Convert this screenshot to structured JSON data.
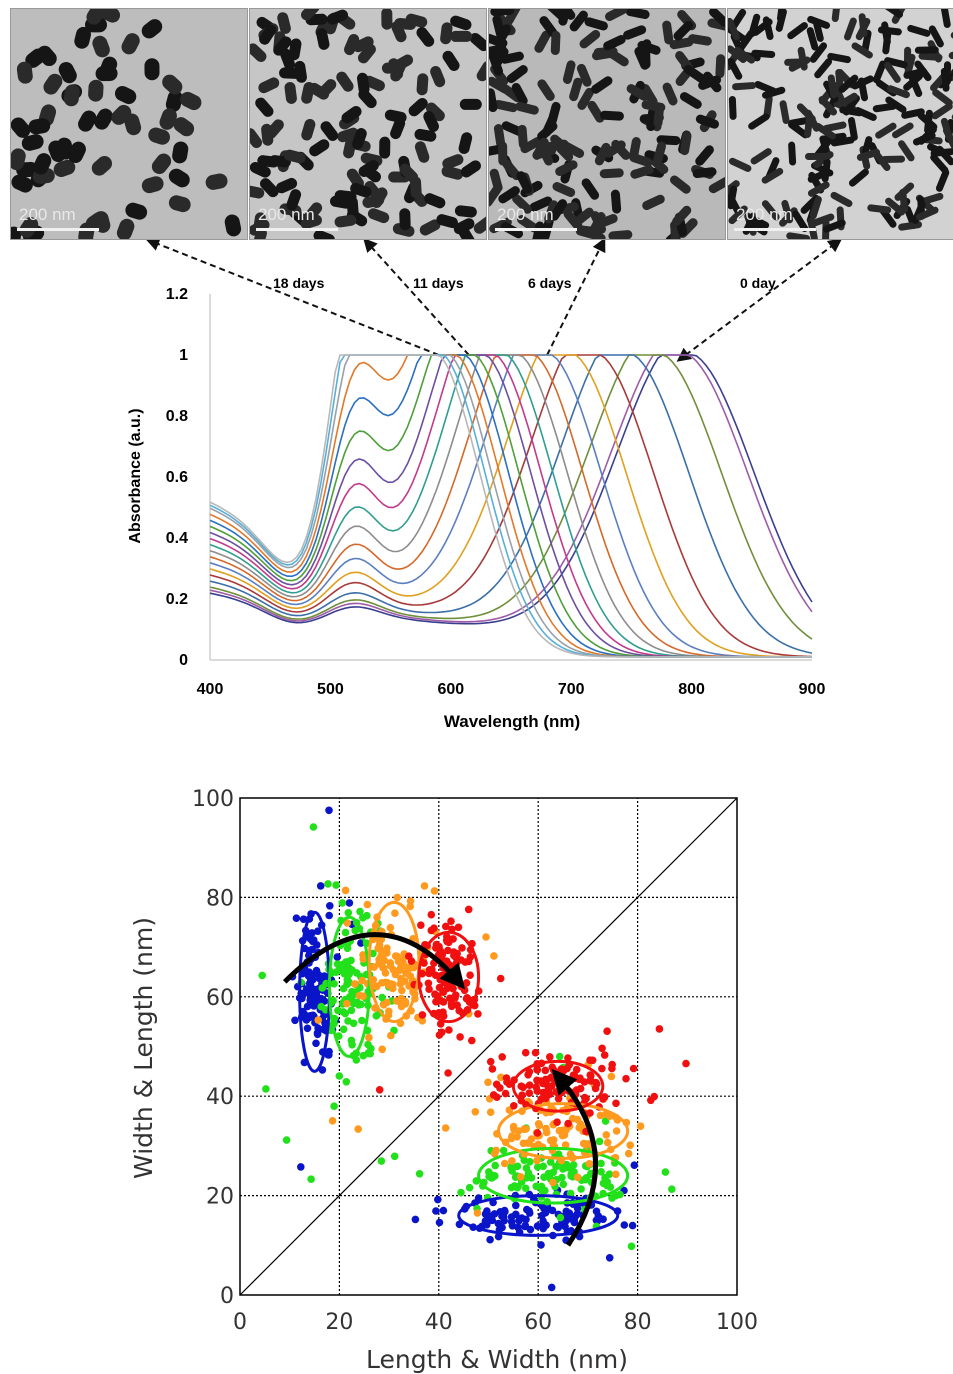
{
  "tem_images": [
    {
      "scale_label": "200 nm",
      "age": "18 days"
    },
    {
      "scale_label": "200 nm",
      "age": "11 days"
    },
    {
      "scale_label": "200 nm",
      "age": "6 days"
    },
    {
      "scale_label": "200 nm",
      "age": "0 day"
    }
  ],
  "colors": {
    "blue": "#0a14c8",
    "green": "#22e01a",
    "orange": "#ff9a1e",
    "red": "#f01010"
  },
  "chart_data": [
    {
      "type": "line",
      "xlabel": "Wavelength (nm)",
      "ylabel": "Absorbance (a.u.)",
      "xlim": [
        400,
        900
      ],
      "ylim": [
        0,
        1.2
      ],
      "xticks": [
        400,
        500,
        600,
        700,
        800,
        900
      ],
      "yticks": [
        0,
        0.2,
        0.4,
        0.6,
        0.8,
        1,
        1.2
      ],
      "ytick_labels": [
        "0",
        "0.2",
        "0.4",
        "0.6",
        "0.8",
        "1",
        "1.2"
      ],
      "grid": false,
      "annotations": [
        "18 days",
        "11 days",
        "6 days",
        "0 day"
      ],
      "series": [
        {
          "peak": 795,
          "color": "#3b3f8f",
          "start": 0.22,
          "trans": 0.21,
          "trans_height": 0.03,
          "tail": 0.3
        },
        {
          "peak": 790,
          "color": "#9e5ca8",
          "start": 0.23,
          "trans": 0.22,
          "trans_height": 0.035,
          "tail": 0.24
        },
        {
          "peak": 770,
          "color": "#6f8f3a",
          "start": 0.24,
          "trans": 0.23,
          "trans_height": 0.04,
          "tail": 0.18
        },
        {
          "peak": 745,
          "color": "#3a6fa8",
          "start": 0.26,
          "trans": 0.25,
          "trans_height": 0.05,
          "tail": 0.12
        },
        {
          "peak": 718,
          "color": "#a83a3a",
          "start": 0.28,
          "trans": 0.27,
          "trans_height": 0.07,
          "tail": 0.08
        },
        {
          "peak": 697,
          "color": "#e0a020",
          "start": 0.3,
          "trans": 0.29,
          "trans_height": 0.09,
          "tail": 0.06
        },
        {
          "peak": 678,
          "color": "#5a7fc0",
          "start": 0.32,
          "trans": 0.31,
          "trans_height": 0.12,
          "tail": 0.05
        },
        {
          "peak": 664,
          "color": "#d4692a",
          "start": 0.34,
          "trans": 0.33,
          "trans_height": 0.15,
          "tail": 0.04
        },
        {
          "peak": 652,
          "color": "#8c8c8c",
          "start": 0.36,
          "trans": 0.35,
          "trans_height": 0.19,
          "tail": 0.035
        },
        {
          "peak": 641,
          "color": "#2f9e8f",
          "start": 0.38,
          "trans": 0.37,
          "trans_height": 0.23,
          "tail": 0.03
        },
        {
          "peak": 632,
          "color": "#c23a8a",
          "start": 0.4,
          "trans": 0.39,
          "trans_height": 0.28,
          "tail": 0.03
        },
        {
          "peak": 624,
          "color": "#6b4fa0",
          "start": 0.42,
          "trans": 0.41,
          "trans_height": 0.33,
          "tail": 0.025
        },
        {
          "peak": 615,
          "color": "#4f9e3a",
          "start": 0.44,
          "trans": 0.43,
          "trans_height": 0.38,
          "tail": 0.025
        },
        {
          "peak": 607,
          "color": "#2a6fc0",
          "start": 0.46,
          "trans": 0.45,
          "trans_height": 0.44,
          "tail": 0.02
        },
        {
          "peak": 600,
          "color": "#e07a2a",
          "start": 0.48,
          "trans": 0.46,
          "trans_height": 0.5,
          "tail": 0.02
        },
        {
          "peak": 594,
          "color": "#9aa0a8",
          "start": 0.5,
          "trans": 0.47,
          "trans_height": 0.57,
          "tail": 0.02
        },
        {
          "peak": 589,
          "color": "#56b0d8",
          "start": 0.51,
          "trans": 0.48,
          "trans_height": 0.64,
          "tail": 0.02
        },
        {
          "peak": 585,
          "color": "#b8b8b8",
          "start": 0.52,
          "trans": 0.48,
          "trans_height": 0.7,
          "tail": 0.02
        }
      ]
    },
    {
      "type": "scatter",
      "xlabel": "Length & Width (nm)",
      "ylabel": "Width & Length (nm)",
      "xlim": [
        0,
        100
      ],
      "ylim": [
        0,
        100
      ],
      "xticks": [
        0,
        20,
        40,
        60,
        80,
        100
      ],
      "yticks": [
        0,
        20,
        40,
        60,
        80,
        100
      ],
      "grid": true,
      "reference_line": "y = x",
      "series": [
        {
          "color": "#0a14c8",
          "clusters": [
            {
              "cx": 15,
              "cy": 62,
              "sx": 1.8,
              "sy": 7
            },
            {
              "cx": 60,
              "cy": 16,
              "sx": 9,
              "sy": 2.2
            }
          ]
        },
        {
          "color": "#22e01a",
          "clusters": [
            {
              "cx": 22,
              "cy": 62,
              "sx": 3,
              "sy": 7
            },
            {
              "cx": 63,
              "cy": 24,
              "sx": 9,
              "sy": 3
            }
          ]
        },
        {
          "color": "#ff9a1e",
          "clusters": [
            {
              "cx": 31,
              "cy": 66,
              "sx": 4,
              "sy": 7
            },
            {
              "cx": 64,
              "cy": 33,
              "sx": 8,
              "sy": 4
            }
          ]
        },
        {
          "color": "#f01010",
          "clusters": [
            {
              "cx": 42,
              "cy": 65,
              "sx": 3,
              "sy": 5
            },
            {
              "cx": 64,
              "cy": 42,
              "sx": 6,
              "sy": 3
            }
          ]
        }
      ],
      "ellipses": [
        {
          "color": "#0a14c8",
          "cx": 15,
          "cy": 61,
          "rx": 3,
          "ry": 16
        },
        {
          "color": "#22e01a",
          "cx": 22,
          "cy": 62,
          "rx": 4,
          "ry": 14
        },
        {
          "color": "#ff9a1e",
          "cx": 31,
          "cy": 67,
          "rx": 5,
          "ry": 12
        },
        {
          "color": "#f01010",
          "cx": 42,
          "cy": 64,
          "rx": 6,
          "ry": 9
        },
        {
          "color": "#0a14c8",
          "cx": 60,
          "cy": 16,
          "rx": 16,
          "ry": 4
        },
        {
          "color": "#22e01a",
          "cx": 63,
          "cy": 24,
          "rx": 15,
          "ry": 5.5
        },
        {
          "color": "#ff9a1e",
          "cx": 65,
          "cy": 33,
          "rx": 13,
          "ry": 5.5
        },
        {
          "color": "#f01010",
          "cx": 64,
          "cy": 42,
          "rx": 9,
          "ry": 5
        }
      ]
    }
  ]
}
